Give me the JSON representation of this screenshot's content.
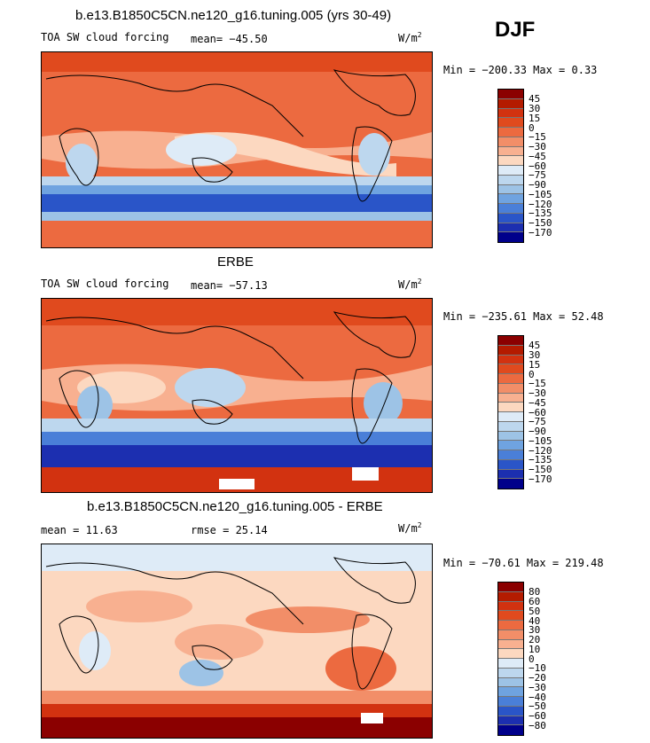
{
  "season": "DJF",
  "panels": [
    {
      "title": "b.e13.B1850C5CN.ne120_g16.tuning.005 (yrs 30-49)",
      "label_left": "TOA SW cloud forcing",
      "stat_text": "mean=  −45.50",
      "units": "W/m",
      "units_exp": "2",
      "minmax": "Min = −200.33  Max =    0.33",
      "levels": [
        "45",
        "30",
        "15",
        "0",
        "−15",
        "−30",
        "−45",
        "−60",
        "−75",
        "−90",
        "−105",
        "−120",
        "−135",
        "−150",
        "−170"
      ]
    },
    {
      "title": "ERBE",
      "label_left": "TOA SW cloud forcing",
      "stat_text": "mean=  −57.13",
      "units": "W/m",
      "units_exp": "2",
      "minmax": "Min = −235.61  Max =   52.48",
      "levels": [
        "45",
        "30",
        "15",
        "0",
        "−15",
        "−30",
        "−45",
        "−60",
        "−75",
        "−90",
        "−105",
        "−120",
        "−135",
        "−150",
        "−170"
      ]
    },
    {
      "title": "b.e13.B1850C5CN.ne120_g16.tuning.005 - ERBE",
      "label_left": "mean =   11.63",
      "stat_text": "rmse =   25.14",
      "units": "W/m",
      "units_exp": "2",
      "minmax": "Min =  −70.61  Max =  219.48",
      "levels": [
        "80",
        "60",
        "50",
        "40",
        "30",
        "20",
        "10",
        "0",
        "−10",
        "−20",
        "−30",
        "−40",
        "−50",
        "−60",
        "−80"
      ]
    }
  ],
  "colors": {
    "abs_scale": [
      "#8b0000",
      "#b41b00",
      "#d23210",
      "#e04a1e",
      "#ec6a40",
      "#f28e68",
      "#f8b090",
      "#fcd8c0",
      "#deebf7",
      "#bdd7ee",
      "#9dc3e6",
      "#6fa3e0",
      "#4a7fd8",
      "#2a55c8",
      "#1c2fb0",
      "#00008b"
    ],
    "diff_scale": [
      "#8b0000",
      "#b41b00",
      "#d23210",
      "#e04a1e",
      "#ec6a40",
      "#f28e68",
      "#f8b090",
      "#fcd8c0",
      "#deebf7",
      "#bdd7ee",
      "#9dc3e6",
      "#6fa3e0",
      "#4a7fd8",
      "#2a55c8",
      "#1c2fb0",
      "#00008b"
    ]
  }
}
